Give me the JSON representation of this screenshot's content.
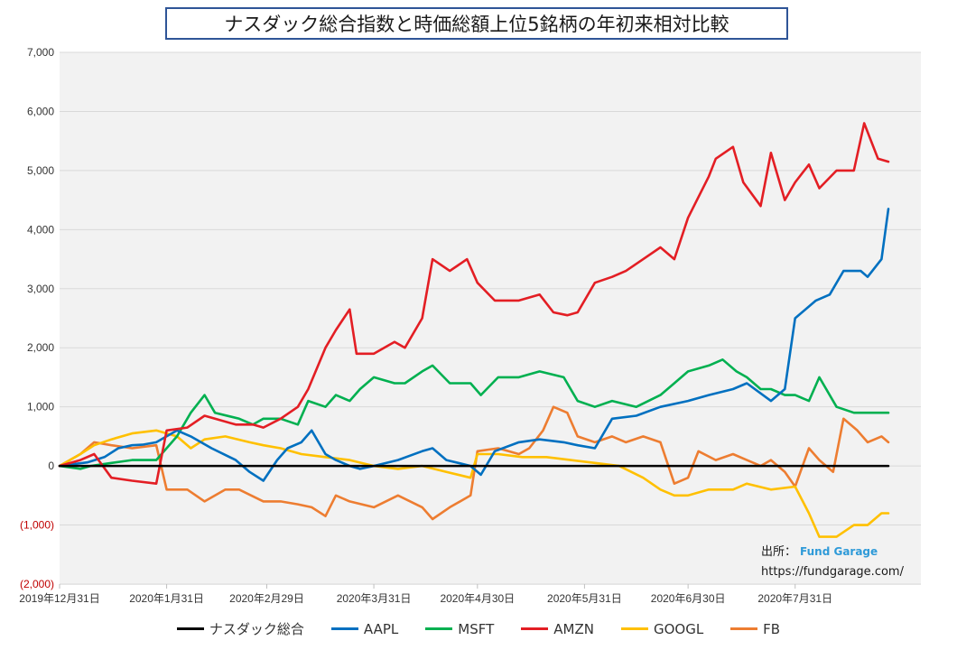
{
  "title": "ナスダック総合指数と時価総額上位5銘柄の年初来相対比較",
  "source": {
    "label": "出所：",
    "brand": "Fund Garage",
    "url": "https://fundgarage.com/"
  },
  "chart_data": {
    "type": "line",
    "title": "ナスダック総合指数と時価総額上位5銘柄の年初来相対比較",
    "xlabel": "",
    "ylabel": "",
    "ylim": [
      -2000,
      7000
    ],
    "yticks": [
      {
        "value": 7000,
        "label": "7,000"
      },
      {
        "value": 6000,
        "label": "6,000"
      },
      {
        "value": 5000,
        "label": "5,000"
      },
      {
        "value": 4000,
        "label": "4,000"
      },
      {
        "value": 3000,
        "label": "3,000"
      },
      {
        "value": 2000,
        "label": "2,000"
      },
      {
        "value": 1000,
        "label": "1,000"
      },
      {
        "value": 0,
        "label": "0"
      },
      {
        "value": -1000,
        "label": "(1,000)"
      },
      {
        "value": -2000,
        "label": "(2,000)"
      }
    ],
    "xlim": [
      "2019-12-31",
      "2020-08-27"
    ],
    "xticks": [
      "2019-12-31",
      "2020-01-31",
      "2020-02-29",
      "2020-03-31",
      "2020-04-30",
      "2020-05-31",
      "2020-06-30",
      "2020-07-31"
    ],
    "xtick_labels": [
      "2019年12月31日",
      "2020年1月31日",
      "2020年2月29日",
      "2020年3月31日",
      "2020年4月30日",
      "2020年5月31日",
      "2020年6月30日",
      "2020年7月31日"
    ],
    "grid": true,
    "legend": "bottom",
    "negative_tick_color": "#c00000",
    "series": [
      {
        "name": "ナスダック総合",
        "color": "#000000",
        "points": [
          [
            "2019-12-31",
            0
          ],
          [
            "2020-08-27",
            0
          ]
        ]
      },
      {
        "name": "AAPL",
        "color": "#0070c0",
        "points": [
          [
            "2019-12-31",
            0
          ],
          [
            "2020-01-08",
            60
          ],
          [
            "2020-01-13",
            150
          ],
          [
            "2020-01-17",
            300
          ],
          [
            "2020-01-21",
            350
          ],
          [
            "2020-01-24",
            360
          ],
          [
            "2020-01-28",
            400
          ],
          [
            "2020-02-03",
            600
          ],
          [
            "2020-02-07",
            500
          ],
          [
            "2020-02-13",
            300
          ],
          [
            "2020-02-20",
            100
          ],
          [
            "2020-02-24",
            -100
          ],
          [
            "2020-02-28",
            -250
          ],
          [
            "2020-03-03",
            100
          ],
          [
            "2020-03-06",
            300
          ],
          [
            "2020-03-10",
            400
          ],
          [
            "2020-03-13",
            600
          ],
          [
            "2020-03-17",
            200
          ],
          [
            "2020-03-20",
            100
          ],
          [
            "2020-03-24",
            0
          ],
          [
            "2020-03-27",
            -50
          ],
          [
            "2020-03-31",
            0
          ],
          [
            "2020-04-07",
            100
          ],
          [
            "2020-04-14",
            250
          ],
          [
            "2020-04-17",
            300
          ],
          [
            "2020-04-21",
            100
          ],
          [
            "2020-04-28",
            0
          ],
          [
            "2020-05-01",
            -150
          ],
          [
            "2020-05-05",
            250
          ],
          [
            "2020-05-12",
            400
          ],
          [
            "2020-05-18",
            450
          ],
          [
            "2020-05-25",
            400
          ],
          [
            "2020-05-29",
            350
          ],
          [
            "2020-06-03",
            300
          ],
          [
            "2020-06-08",
            800
          ],
          [
            "2020-06-15",
            850
          ],
          [
            "2020-06-22",
            1000
          ],
          [
            "2020-06-30",
            1100
          ],
          [
            "2020-07-06",
            1200
          ],
          [
            "2020-07-13",
            1300
          ],
          [
            "2020-07-17",
            1400
          ],
          [
            "2020-07-24",
            1100
          ],
          [
            "2020-07-28",
            1300
          ],
          [
            "2020-07-31",
            2500
          ],
          [
            "2020-08-06",
            2800
          ],
          [
            "2020-08-10",
            2900
          ],
          [
            "2020-08-14",
            3300
          ],
          [
            "2020-08-19",
            3300
          ],
          [
            "2020-08-21",
            3200
          ],
          [
            "2020-08-25",
            3500
          ],
          [
            "2020-08-27",
            4350
          ]
        ]
      },
      {
        "name": "MSFT",
        "color": "#00b050",
        "points": [
          [
            "2019-12-31",
            0
          ],
          [
            "2020-01-06",
            -50
          ],
          [
            "2020-01-09",
            0
          ],
          [
            "2020-01-15",
            50
          ],
          [
            "2020-01-21",
            100
          ],
          [
            "2020-01-28",
            100
          ],
          [
            "2020-02-03",
            500
          ],
          [
            "2020-02-07",
            900
          ],
          [
            "2020-02-11",
            1200
          ],
          [
            "2020-02-14",
            900
          ],
          [
            "2020-02-21",
            800
          ],
          [
            "2020-02-25",
            700
          ],
          [
            "2020-02-28",
            800
          ],
          [
            "2020-03-04",
            800
          ],
          [
            "2020-03-09",
            700
          ],
          [
            "2020-03-12",
            1100
          ],
          [
            "2020-03-17",
            1000
          ],
          [
            "2020-03-20",
            1200
          ],
          [
            "2020-03-24",
            1100
          ],
          [
            "2020-03-27",
            1300
          ],
          [
            "2020-03-31",
            1500
          ],
          [
            "2020-04-06",
            1400
          ],
          [
            "2020-04-09",
            1400
          ],
          [
            "2020-04-14",
            1600
          ],
          [
            "2020-04-17",
            1700
          ],
          [
            "2020-04-22",
            1400
          ],
          [
            "2020-04-28",
            1400
          ],
          [
            "2020-05-01",
            1200
          ],
          [
            "2020-05-06",
            1500
          ],
          [
            "2020-05-12",
            1500
          ],
          [
            "2020-05-18",
            1600
          ],
          [
            "2020-05-25",
            1500
          ],
          [
            "2020-05-29",
            1100
          ],
          [
            "2020-06-03",
            1000
          ],
          [
            "2020-06-08",
            1100
          ],
          [
            "2020-06-15",
            1000
          ],
          [
            "2020-06-22",
            1200
          ],
          [
            "2020-06-26",
            1400
          ],
          [
            "2020-06-30",
            1600
          ],
          [
            "2020-07-06",
            1700
          ],
          [
            "2020-07-10",
            1800
          ],
          [
            "2020-07-14",
            1600
          ],
          [
            "2020-07-17",
            1500
          ],
          [
            "2020-07-21",
            1300
          ],
          [
            "2020-07-24",
            1300
          ],
          [
            "2020-07-28",
            1200
          ],
          [
            "2020-07-31",
            1200
          ],
          [
            "2020-08-04",
            1100
          ],
          [
            "2020-08-07",
            1500
          ],
          [
            "2020-08-12",
            1000
          ],
          [
            "2020-08-17",
            900
          ],
          [
            "2020-08-21",
            900
          ],
          [
            "2020-08-25",
            900
          ],
          [
            "2020-08-27",
            900
          ]
        ]
      },
      {
        "name": "AMZN",
        "color": "#e31e24",
        "points": [
          [
            "2019-12-31",
            0
          ],
          [
            "2020-01-06",
            100
          ],
          [
            "2020-01-10",
            200
          ],
          [
            "2020-01-15",
            -200
          ],
          [
            "2020-01-21",
            -250
          ],
          [
            "2020-01-28",
            -300
          ],
          [
            "2020-01-31",
            600
          ],
          [
            "2020-02-06",
            650
          ],
          [
            "2020-02-11",
            850
          ],
          [
            "2020-02-14",
            800
          ],
          [
            "2020-02-20",
            700
          ],
          [
            "2020-02-25",
            700
          ],
          [
            "2020-02-28",
            650
          ],
          [
            "2020-03-04",
            800
          ],
          [
            "2020-03-09",
            1000
          ],
          [
            "2020-03-12",
            1300
          ],
          [
            "2020-03-17",
            2000
          ],
          [
            "2020-03-20",
            2300
          ],
          [
            "2020-03-24",
            2650
          ],
          [
            "2020-03-26",
            1900
          ],
          [
            "2020-03-31",
            1900
          ],
          [
            "2020-04-06",
            2100
          ],
          [
            "2020-04-09",
            2000
          ],
          [
            "2020-04-14",
            2500
          ],
          [
            "2020-04-17",
            3500
          ],
          [
            "2020-04-22",
            3300
          ],
          [
            "2020-04-27",
            3500
          ],
          [
            "2020-04-30",
            3100
          ],
          [
            "2020-05-05",
            2800
          ],
          [
            "2020-05-12",
            2800
          ],
          [
            "2020-05-18",
            2900
          ],
          [
            "2020-05-22",
            2600
          ],
          [
            "2020-05-26",
            2550
          ],
          [
            "2020-05-29",
            2600
          ],
          [
            "2020-06-03",
            3100
          ],
          [
            "2020-06-08",
            3200
          ],
          [
            "2020-06-12",
            3300
          ],
          [
            "2020-06-17",
            3500
          ],
          [
            "2020-06-22",
            3700
          ],
          [
            "2020-06-26",
            3500
          ],
          [
            "2020-06-30",
            4200
          ],
          [
            "2020-07-06",
            4900
          ],
          [
            "2020-07-08",
            5200
          ],
          [
            "2020-07-13",
            5400
          ],
          [
            "2020-07-16",
            4800
          ],
          [
            "2020-07-21",
            4400
          ],
          [
            "2020-07-24",
            5300
          ],
          [
            "2020-07-28",
            4500
          ],
          [
            "2020-07-31",
            4800
          ],
          [
            "2020-08-04",
            5100
          ],
          [
            "2020-08-07",
            4700
          ],
          [
            "2020-08-12",
            5000
          ],
          [
            "2020-08-17",
            5000
          ],
          [
            "2020-08-20",
            5800
          ],
          [
            "2020-08-24",
            5200
          ],
          [
            "2020-08-27",
            5150
          ]
        ]
      },
      {
        "name": "GOOGL",
        "color": "#ffc000",
        "points": [
          [
            "2019-12-31",
            0
          ],
          [
            "2020-01-06",
            200
          ],
          [
            "2020-01-10",
            350
          ],
          [
            "2020-01-15",
            450
          ],
          [
            "2020-01-21",
            550
          ],
          [
            "2020-01-28",
            600
          ],
          [
            "2020-02-03",
            500
          ],
          [
            "2020-02-07",
            300
          ],
          [
            "2020-02-11",
            450
          ],
          [
            "2020-02-17",
            500
          ],
          [
            "2020-02-24",
            400
          ],
          [
            "2020-02-28",
            350
          ],
          [
            "2020-03-04",
            300
          ],
          [
            "2020-03-10",
            200
          ],
          [
            "2020-03-17",
            150
          ],
          [
            "2020-03-24",
            100
          ],
          [
            "2020-03-31",
            0
          ],
          [
            "2020-04-07",
            -50
          ],
          [
            "2020-04-14",
            0
          ],
          [
            "2020-04-21",
            -100
          ],
          [
            "2020-04-28",
            -200
          ],
          [
            "2020-04-30",
            200
          ],
          [
            "2020-05-06",
            200
          ],
          [
            "2020-05-13",
            150
          ],
          [
            "2020-05-20",
            150
          ],
          [
            "2020-05-27",
            100
          ],
          [
            "2020-06-03",
            50
          ],
          [
            "2020-06-10",
            0
          ],
          [
            "2020-06-17",
            -200
          ],
          [
            "2020-06-22",
            -400
          ],
          [
            "2020-06-26",
            -500
          ],
          [
            "2020-06-30",
            -500
          ],
          [
            "2020-07-06",
            -400
          ],
          [
            "2020-07-13",
            -400
          ],
          [
            "2020-07-17",
            -300
          ],
          [
            "2020-07-24",
            -400
          ],
          [
            "2020-07-31",
            -350
          ],
          [
            "2020-08-04",
            -800
          ],
          [
            "2020-08-07",
            -1200
          ],
          [
            "2020-08-12",
            -1200
          ],
          [
            "2020-08-17",
            -1000
          ],
          [
            "2020-08-21",
            -1000
          ],
          [
            "2020-08-25",
            -800
          ],
          [
            "2020-08-27",
            -800
          ]
        ]
      },
      {
        "name": "FB",
        "color": "#ed7d31",
        "points": [
          [
            "2019-12-31",
            0
          ],
          [
            "2020-01-06",
            200
          ],
          [
            "2020-01-10",
            400
          ],
          [
            "2020-01-15",
            350
          ],
          [
            "2020-01-21",
            300
          ],
          [
            "2020-01-28",
            350
          ],
          [
            "2020-01-31",
            -400
          ],
          [
            "2020-02-06",
            -400
          ],
          [
            "2020-02-11",
            -600
          ],
          [
            "2020-02-17",
            -400
          ],
          [
            "2020-02-21",
            -400
          ],
          [
            "2020-02-28",
            -600
          ],
          [
            "2020-03-04",
            -600
          ],
          [
            "2020-03-09",
            -650
          ],
          [
            "2020-03-13",
            -700
          ],
          [
            "2020-03-17",
            -850
          ],
          [
            "2020-03-20",
            -500
          ],
          [
            "2020-03-24",
            -600
          ],
          [
            "2020-03-31",
            -700
          ],
          [
            "2020-04-07",
            -500
          ],
          [
            "2020-04-14",
            -700
          ],
          [
            "2020-04-17",
            -900
          ],
          [
            "2020-04-22",
            -700
          ],
          [
            "2020-04-28",
            -500
          ],
          [
            "2020-04-30",
            250
          ],
          [
            "2020-05-06",
            300
          ],
          [
            "2020-05-12",
            200
          ],
          [
            "2020-05-15",
            300
          ],
          [
            "2020-05-19",
            600
          ],
          [
            "2020-05-22",
            1000
          ],
          [
            "2020-05-26",
            900
          ],
          [
            "2020-05-29",
            500
          ],
          [
            "2020-06-03",
            400
          ],
          [
            "2020-06-08",
            500
          ],
          [
            "2020-06-12",
            400
          ],
          [
            "2020-06-17",
            500
          ],
          [
            "2020-06-22",
            400
          ],
          [
            "2020-06-26",
            -300
          ],
          [
            "2020-06-30",
            -200
          ],
          [
            "2020-07-03",
            250
          ],
          [
            "2020-07-08",
            100
          ],
          [
            "2020-07-13",
            200
          ],
          [
            "2020-07-17",
            100
          ],
          [
            "2020-07-21",
            0
          ],
          [
            "2020-07-24",
            100
          ],
          [
            "2020-07-28",
            -100
          ],
          [
            "2020-07-31",
            -350
          ],
          [
            "2020-08-04",
            300
          ],
          [
            "2020-08-07",
            100
          ],
          [
            "2020-08-11",
            -100
          ],
          [
            "2020-08-14",
            800
          ],
          [
            "2020-08-18",
            600
          ],
          [
            "2020-08-21",
            400
          ],
          [
            "2020-08-25",
            500
          ],
          [
            "2020-08-27",
            400
          ]
        ]
      }
    ]
  }
}
